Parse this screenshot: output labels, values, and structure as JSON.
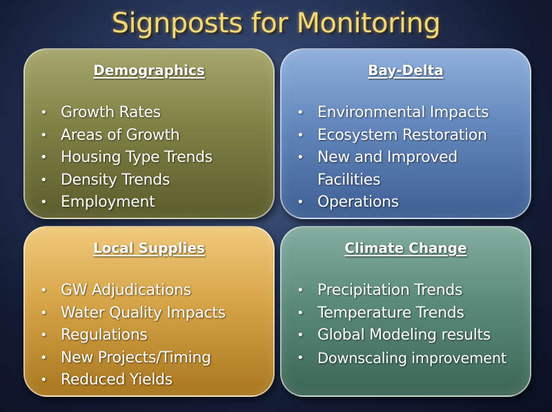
{
  "title": "Signposts for Monitoring",
  "cards": [
    {
      "heading": "Demographics",
      "items": [
        "Growth Rates",
        "Areas of Growth",
        "Housing Type Trends",
        "Density Trends",
        "Employment"
      ]
    },
    {
      "heading": "Bay-Delta",
      "items": [
        "Environmental Impacts",
        "Ecosystem Restoration",
        "New and Improved Facilities",
        "Operations"
      ]
    },
    {
      "heading": "Local Supplies",
      "items": [
        "GW Adjudications",
        "Water Quality Impacts",
        "Regulations",
        "New Projects/Timing",
        "Reduced Yields"
      ]
    },
    {
      "heading": "Climate Change",
      "items": [
        "Precipitation Trends",
        "Temperature Trends",
        "Global Modeling results",
        "Downscaling improvement"
      ]
    }
  ]
}
